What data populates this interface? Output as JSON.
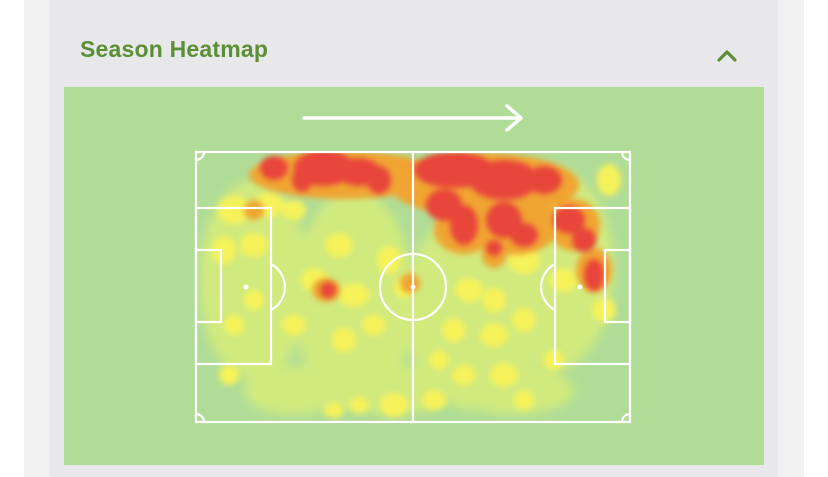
{
  "card": {
    "title": "Season Heatmap",
    "collapse_icon": "chevron-up-icon"
  },
  "heatmap": {
    "direction_icon": "right-arrow-icon",
    "colors": {
      "background": "#b0dc97",
      "low": "#d6ed7a",
      "medium": "#f6f25a",
      "high": "#f0a533",
      "peak": "#e8453a",
      "lines": "#ffffff"
    }
  }
}
